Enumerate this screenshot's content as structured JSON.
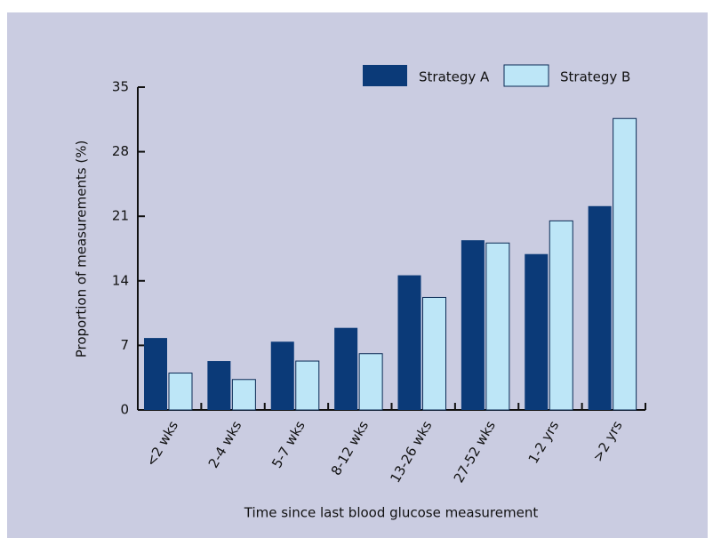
{
  "chart_data": {
    "type": "bar",
    "x_label": "Time since last blood glucose measurement",
    "y_label": "Proportion of measurements (%)",
    "categories": [
      "<2 wks",
      "2-4 wks",
      "5-7 wks",
      "8-12 wks",
      "13-26 wks",
      "27-52 wks",
      "1-2 yrs",
      ">2 yrs"
    ],
    "series": [
      {
        "name": "Strategy A",
        "color": "#0b3a78",
        "values": [
          7.8,
          5.3,
          7.4,
          8.9,
          14.6,
          18.4,
          16.9,
          22.1
        ]
      },
      {
        "name": "Strategy B",
        "color": "#bde6f7",
        "values": [
          4.0,
          3.3,
          5.3,
          6.1,
          12.2,
          18.1,
          20.5,
          31.6
        ]
      }
    ],
    "ylim": [
      0,
      35
    ],
    "yticks": [
      0,
      7,
      14,
      21,
      28,
      35
    ],
    "legend": "top-right"
  }
}
